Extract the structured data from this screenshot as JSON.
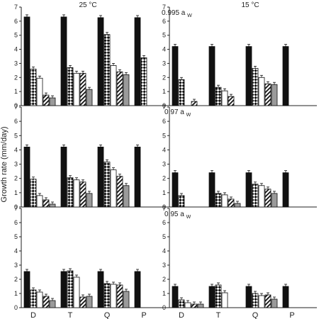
{
  "figure": {
    "ylabel": "Growth rate (mm/day)",
    "column_headers": [
      "25 °C",
      "15 °C"
    ],
    "row_labels": [
      {
        "prefix": "0.995 a",
        "sub": "W"
      },
      {
        "prefix": "0.97 a",
        "sub": "W"
      },
      {
        "prefix": "0.95 a",
        "sub": "W"
      }
    ]
  },
  "chart_data": [
    {
      "type": "bar",
      "title": "25 °C, 0.995 aW",
      "categories": [
        "D",
        "T",
        "Q",
        "P"
      ],
      "ylim": [
        0,
        7
      ],
      "yticks": [
        0,
        1,
        2,
        3,
        4,
        5,
        6,
        7
      ],
      "series": [
        {
          "pattern": "solid-black",
          "values": [
            6.3,
            6.3,
            6.25,
            6.25
          ]
        },
        {
          "pattern": "checker",
          "values": [
            2.6,
            2.7,
            5.05,
            3.4
          ]
        },
        {
          "pattern": "white",
          "values": [
            1.95,
            2.3,
            2.85,
            null
          ]
        },
        {
          "pattern": "diagonal-hatch",
          "values": [
            0.75,
            2.3,
            2.4,
            null
          ]
        },
        {
          "pattern": "gray",
          "values": [
            0.55,
            1.15,
            2.2,
            null
          ]
        }
      ]
    },
    {
      "type": "bar",
      "title": "15 °C, 0.995 aW",
      "categories": [
        "D",
        "T",
        "Q",
        "P"
      ],
      "ylim": [
        0,
        7
      ],
      "yticks": [
        0,
        1,
        2,
        3,
        4,
        5,
        6,
        7
      ],
      "series": [
        {
          "pattern": "solid-black",
          "values": [
            4.2,
            4.2,
            4.2,
            4.2
          ]
        },
        {
          "pattern": "checker",
          "values": [
            1.85,
            1.3,
            2.65,
            null
          ]
        },
        {
          "pattern": "white",
          "values": [
            0.0,
            1.05,
            2.0,
            null
          ]
        },
        {
          "pattern": "diagonal-hatch",
          "values": [
            0.3,
            0.65,
            1.55,
            null
          ]
        },
        {
          "pattern": "gray",
          "values": [
            0.0,
            0.0,
            1.5,
            null
          ]
        }
      ]
    },
    {
      "type": "bar",
      "title": "25 °C, 0.97 aW",
      "categories": [
        "D",
        "T",
        "Q",
        "P"
      ],
      "ylim": [
        0,
        7
      ],
      "yticks": [
        0,
        1,
        2,
        3,
        4,
        5,
        6,
        7
      ],
      "series": [
        {
          "pattern": "solid-black",
          "values": [
            4.2,
            4.2,
            4.2,
            4.2
          ]
        },
        {
          "pattern": "checker",
          "values": [
            1.95,
            2.05,
            3.15,
            null
          ]
        },
        {
          "pattern": "white",
          "values": [
            0.8,
            1.9,
            2.6,
            null
          ]
        },
        {
          "pattern": "diagonal-hatch",
          "values": [
            0.5,
            1.75,
            2.15,
            null
          ]
        },
        {
          "pattern": "gray",
          "values": [
            0.2,
            0.95,
            1.5,
            null
          ]
        }
      ]
    },
    {
      "type": "bar",
      "title": "15 °C, 0.97 aW",
      "categories": [
        "D",
        "T",
        "Q",
        "P"
      ],
      "ylim": [
        0,
        7
      ],
      "yticks": [
        0,
        1,
        2,
        3,
        4,
        5,
        6,
        7
      ],
      "series": [
        {
          "pattern": "solid-black",
          "values": [
            2.4,
            2.4,
            2.4,
            2.4
          ]
        },
        {
          "pattern": "checker",
          "values": [
            0.8,
            0.95,
            1.6,
            null
          ]
        },
        {
          "pattern": "white",
          "values": [
            0.0,
            0.85,
            1.5,
            null
          ]
        },
        {
          "pattern": "diagonal-hatch",
          "values": [
            0.0,
            0.55,
            1.25,
            null
          ]
        },
        {
          "pattern": "gray",
          "values": [
            0.0,
            0.25,
            0.95,
            null
          ]
        }
      ]
    },
    {
      "type": "bar",
      "title": "25 °C, 0.95 aW",
      "categories": [
        "D",
        "T",
        "Q",
        "P"
      ],
      "ylim": [
        0,
        7
      ],
      "yticks": [
        0,
        1,
        2,
        3,
        4,
        5,
        6,
        7
      ],
      "series": [
        {
          "pattern": "solid-black",
          "values": [
            2.55,
            2.55,
            2.55,
            2.55
          ]
        },
        {
          "pattern": "checker",
          "values": [
            1.25,
            2.6,
            1.7,
            null
          ]
        },
        {
          "pattern": "white",
          "values": [
            1.1,
            2.15,
            1.65,
            null
          ]
        },
        {
          "pattern": "diagonal-hatch",
          "values": [
            0.8,
            0.75,
            1.6,
            null
          ]
        },
        {
          "pattern": "gray",
          "values": [
            0.5,
            0.8,
            1.15,
            null
          ]
        }
      ]
    },
    {
      "type": "bar",
      "title": "15 °C, 0.95 aW",
      "categories": [
        "D",
        "T",
        "Q",
        "P"
      ],
      "ylim": [
        0,
        7
      ],
      "yticks": [
        0,
        1,
        2,
        3,
        4,
        5,
        6,
        7
      ],
      "series": [
        {
          "pattern": "solid-black",
          "values": [
            1.5,
            1.5,
            1.5,
            1.5
          ]
        },
        {
          "pattern": "checker",
          "values": [
            0.55,
            1.6,
            1.0,
            null
          ]
        },
        {
          "pattern": "white",
          "values": [
            0.35,
            1.05,
            0.85,
            null
          ]
        },
        {
          "pattern": "diagonal-hatch",
          "values": [
            0.25,
            0.0,
            0.9,
            null
          ]
        },
        {
          "pattern": "gray",
          "values": [
            0.25,
            0.0,
            0.6,
            null
          ]
        }
      ]
    }
  ]
}
